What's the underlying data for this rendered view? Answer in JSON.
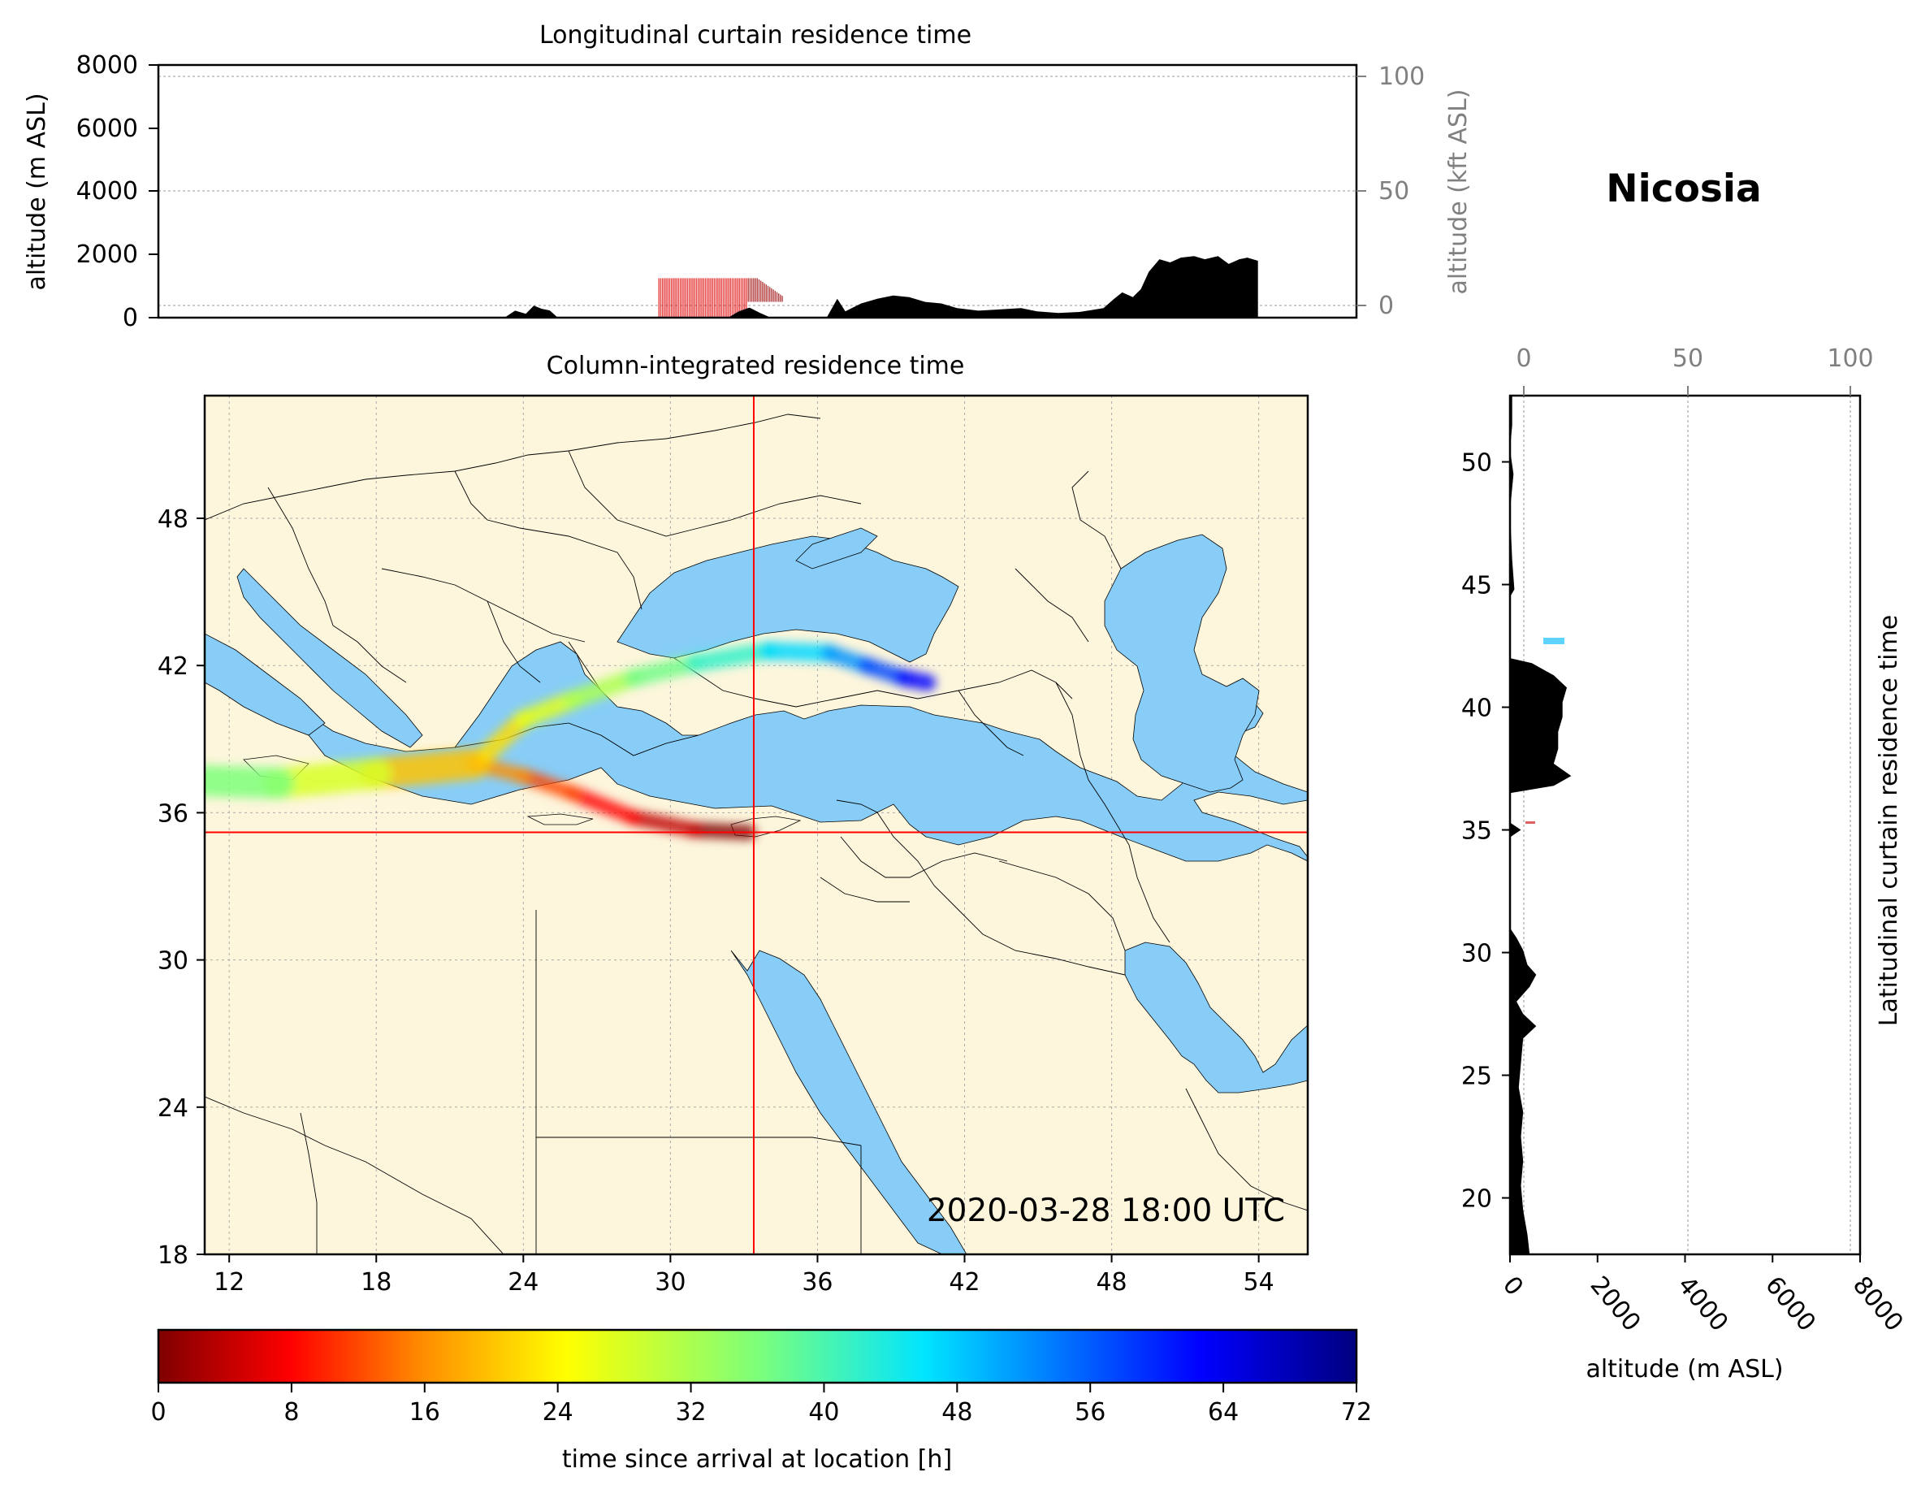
{
  "figure": {
    "location_title": "Nicosia",
    "timestamp": "2020-03-28 18:00 UTC"
  },
  "chart_data": [
    {
      "type": "area",
      "id": "longitudinal",
      "title": "Longitudinal curtain residence time",
      "ylabel": "altitude (m ASL)",
      "ylabel_right": "altitude (kft ASL)",
      "ylim": [
        0,
        8000
      ],
      "yticks": [
        "0",
        "2000",
        "4000",
        "6000",
        "8000"
      ],
      "yticks_right": [
        "0",
        "50",
        "100"
      ],
      "x_range_deg": [
        11,
        56
      ],
      "terrain_m": [
        [
          11,
          0
        ],
        [
          24,
          0
        ],
        [
          24.4,
          220
        ],
        [
          24.8,
          120
        ],
        [
          25.1,
          380
        ],
        [
          25.4,
          280
        ],
        [
          25.7,
          230
        ],
        [
          26,
          0
        ],
        [
          32.4,
          0
        ],
        [
          32.8,
          200
        ],
        [
          33.2,
          320
        ],
        [
          33.6,
          150
        ],
        [
          34,
          0
        ],
        [
          36.1,
          0
        ],
        [
          36.5,
          600
        ],
        [
          36.8,
          200
        ],
        [
          37.4,
          450
        ],
        [
          38,
          600
        ],
        [
          38.6,
          700
        ],
        [
          39.2,
          650
        ],
        [
          39.8,
          500
        ],
        [
          40.4,
          450
        ],
        [
          41,
          300
        ],
        [
          41.8,
          220
        ],
        [
          42.4,
          250
        ],
        [
          43.4,
          300
        ],
        [
          44,
          200
        ],
        [
          44.8,
          150
        ],
        [
          45.6,
          180
        ],
        [
          46.5,
          300
        ],
        [
          46.9,
          600
        ],
        [
          47.2,
          800
        ],
        [
          47.6,
          650
        ],
        [
          47.9,
          900
        ],
        [
          48.2,
          1450
        ],
        [
          48.6,
          1850
        ],
        [
          49,
          1750
        ],
        [
          49.4,
          1900
        ],
        [
          49.9,
          1950
        ],
        [
          50.3,
          1850
        ],
        [
          50.8,
          1950
        ],
        [
          51.2,
          1700
        ],
        [
          51.6,
          1850
        ],
        [
          51.9,
          1900
        ],
        [
          52.3,
          1800
        ],
        [
          52.3,
          0
        ]
      ],
      "residence_deg_range": [
        29.8,
        34.5
      ]
    },
    {
      "type": "line",
      "id": "map",
      "title": "Column-integrated residence time",
      "xticks": [
        "12",
        "18",
        "24",
        "30",
        "36",
        "42",
        "48",
        "54"
      ],
      "yticks": [
        "18",
        "24",
        "30",
        "36",
        "42",
        "48"
      ],
      "xlim": [
        11,
        56
      ],
      "ylim": [
        18,
        53
      ],
      "receptor": {
        "lon": 33.4,
        "lat": 35.2
      },
      "series": [
        {
          "values": [
            [
              33.2,
              35.2
            ],
            [
              31,
              35.3
            ],
            [
              28.5,
              35.8
            ],
            [
              26,
              36.8
            ],
            [
              24,
              37.5
            ],
            [
              22,
              38
            ]
          ]
        },
        {
          "values": [
            [
              22,
              38
            ],
            [
              18,
              37.6
            ],
            [
              14,
              37.2
            ],
            [
              11,
              37.3
            ]
          ]
        },
        {
          "values": [
            [
              22.5,
              38.4
            ],
            [
              24,
              39.8
            ],
            [
              26,
              40.6
            ],
            [
              28.5,
              41.5
            ],
            [
              31,
              42.1
            ],
            [
              34,
              42.6
            ],
            [
              36.5,
              42.5
            ]
          ]
        },
        {
          "values": [
            [
              36.5,
              42.5
            ],
            [
              38,
              42.0
            ],
            [
              39.5,
              41.5
            ],
            [
              40.5,
              41.3
            ]
          ]
        }
      ]
    },
    {
      "type": "area",
      "id": "latitudinal",
      "title": "Latitudinal curtain residence time",
      "xlabel": "altitude (m ASL)",
      "xlim": [
        0,
        8000
      ],
      "xticks": [
        "0",
        "2000",
        "4000",
        "6000",
        "8000"
      ],
      "xticks_top": [
        "0",
        "50",
        "100"
      ],
      "ylim": [
        17.7,
        52.7
      ],
      "yticks": [
        "20",
        "25",
        "30",
        "35",
        "40",
        "45",
        "50"
      ],
      "terrain_m": [
        [
          17.7,
          450
        ],
        [
          18.5,
          400
        ],
        [
          19.5,
          300
        ],
        [
          20.5,
          250
        ],
        [
          21.5,
          300
        ],
        [
          22.5,
          250
        ],
        [
          23.5,
          300
        ],
        [
          24.5,
          200
        ],
        [
          25.5,
          250
        ],
        [
          26.5,
          300
        ],
        [
          27,
          600
        ],
        [
          27.5,
          300
        ],
        [
          28,
          150
        ],
        [
          28.6,
          450
        ],
        [
          29.1,
          600
        ],
        [
          29.5,
          400
        ],
        [
          30.1,
          300
        ],
        [
          30.6,
          150
        ],
        [
          31,
          0
        ],
        [
          34.7,
          0
        ],
        [
          35,
          250
        ],
        [
          35.3,
          0
        ],
        [
          36.5,
          0
        ],
        [
          36.8,
          1000
        ],
        [
          37.2,
          1400
        ],
        [
          37.7,
          1000
        ],
        [
          38.3,
          1100
        ],
        [
          39,
          1100
        ],
        [
          39.6,
          1200
        ],
        [
          40.2,
          1200
        ],
        [
          40.8,
          1300
        ],
        [
          41.3,
          1000
        ],
        [
          41.8,
          500
        ],
        [
          42,
          0
        ],
        [
          44.5,
          0
        ],
        [
          44.8,
          100
        ],
        [
          46,
          50
        ],
        [
          48,
          0
        ],
        [
          49.5,
          80
        ],
        [
          50.5,
          0
        ],
        [
          51.5,
          50
        ],
        [
          52.7,
          50
        ]
      ]
    },
    {
      "type": "heatmap",
      "id": "colorbar",
      "xlabel": "time since arrival at location [h]",
      "range": [
        0,
        72
      ],
      "ticks": [
        "0",
        "8",
        "16",
        "24",
        "32",
        "40",
        "48",
        "56",
        "64",
        "72"
      ]
    }
  ],
  "colors": {
    "land": "#fdf6dc",
    "sea": "#87cdf7",
    "crosshair": "#ff0000",
    "terrain": "#000000",
    "kft_axis": "#808080"
  }
}
